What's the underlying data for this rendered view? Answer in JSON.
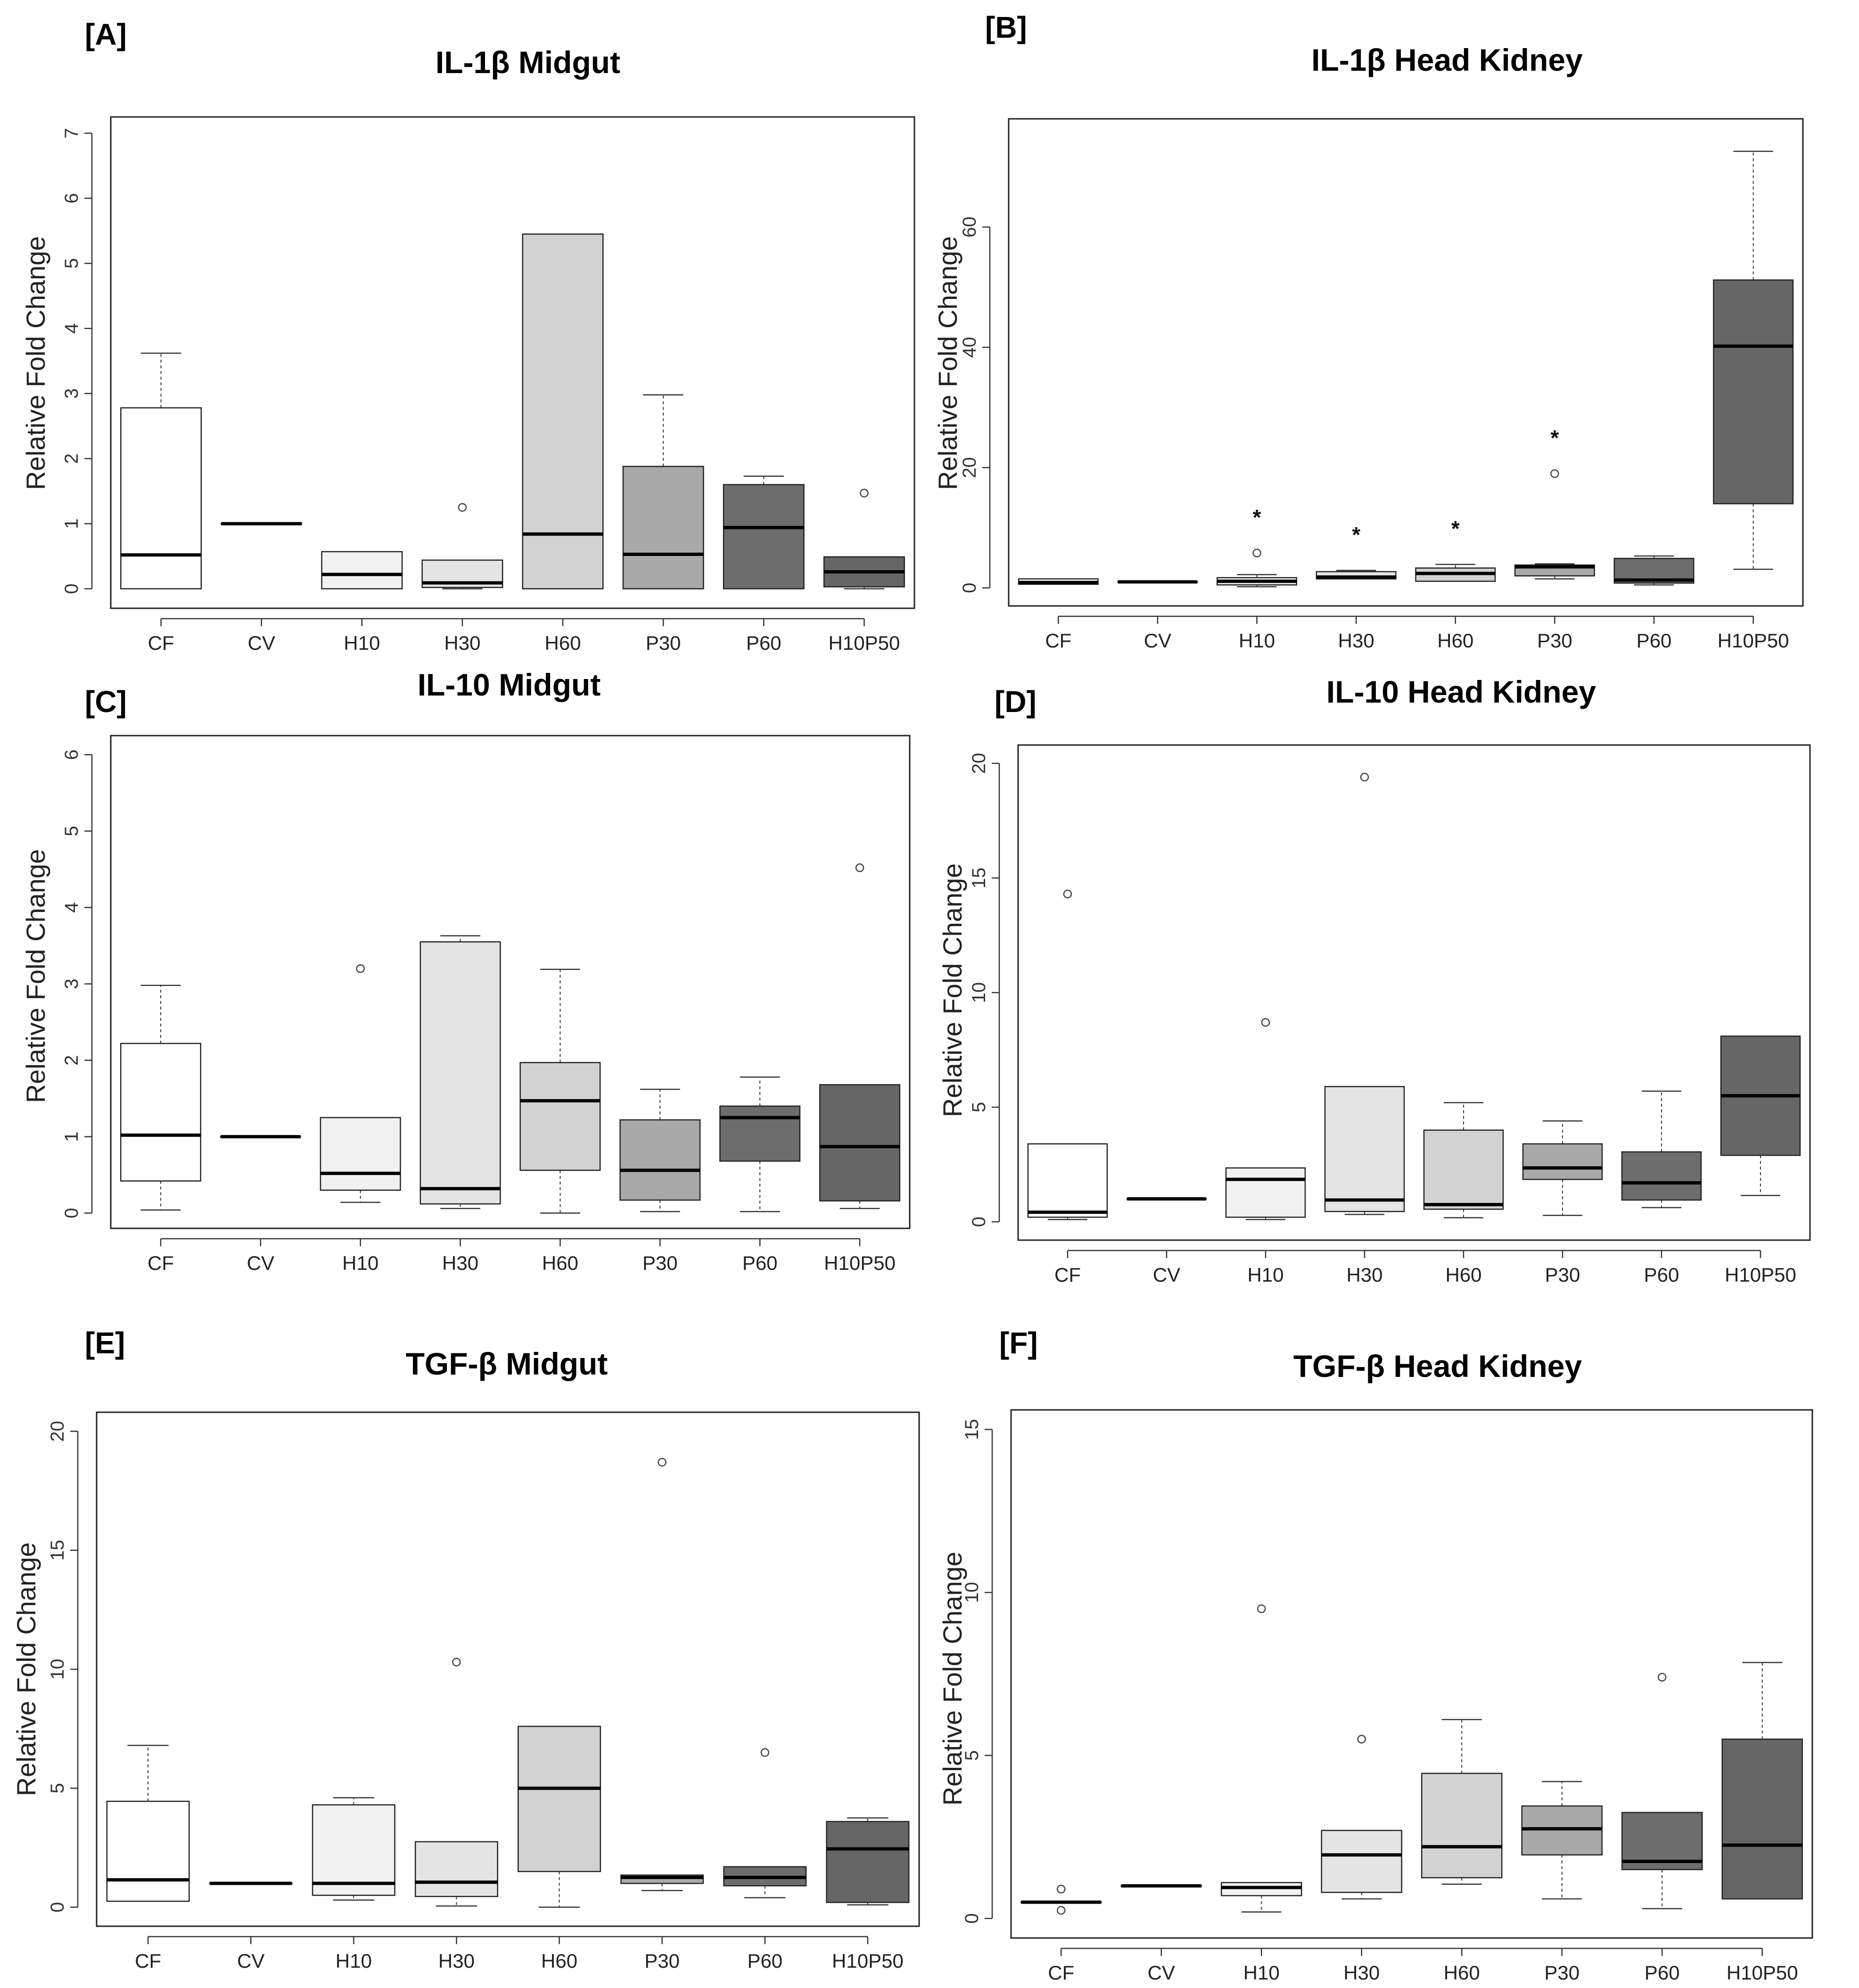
{
  "figure": {
    "boxplot_colors": [
      "#ffffff",
      "#ffffff",
      "#f1f1f1",
      "#e4e4e4",
      "#d2d2d2",
      "#a9a9a9",
      "#6d6d6d",
      "#666666"
    ]
  },
  "chart_data": [
    {
      "panel": "[A]",
      "title": "IL-1β Midgut",
      "type": "boxplot",
      "ylabel": "Relative Fold Change",
      "ylim": [
        -0.3,
        7.25
      ],
      "yticks": [
        0,
        1,
        2,
        3,
        4,
        5,
        6,
        7
      ],
      "categories": [
        "CF",
        "CV",
        "H10",
        "H30",
        "H60",
        "P30",
        "P60",
        "H10P50"
      ],
      "boxes": [
        {
          "min": 0,
          "q1": 0,
          "median": 0.52,
          "q3": 2.78,
          "max": 3.62,
          "outliers": [],
          "sig": ""
        },
        {
          "min": 1,
          "q1": 1,
          "median": 1,
          "q3": 1,
          "max": 1,
          "outliers": [],
          "sig": ""
        },
        {
          "min": 0,
          "q1": 0,
          "median": 0.22,
          "q3": 0.57,
          "max": 0.57,
          "outliers": [],
          "sig": ""
        },
        {
          "min": 0,
          "q1": 0.02,
          "median": 0.09,
          "q3": 0.44,
          "max": 0.44,
          "outliers": [
            1.25
          ],
          "sig": ""
        },
        {
          "min": 0,
          "q1": 0,
          "median": 0.84,
          "q3": 5.45,
          "max": 5.45,
          "outliers": [],
          "sig": ""
        },
        {
          "min": 0,
          "q1": 0,
          "median": 0.53,
          "q3": 1.88,
          "max": 2.98,
          "outliers": [],
          "sig": ""
        },
        {
          "min": 0,
          "q1": 0,
          "median": 0.94,
          "q3": 1.6,
          "max": 1.73,
          "outliers": [],
          "sig": ""
        },
        {
          "min": 0,
          "q1": 0.03,
          "median": 0.26,
          "q3": 0.49,
          "max": 0.49,
          "outliers": [
            1.47
          ],
          "sig": ""
        }
      ]
    },
    {
      "panel": "[B]",
      "title": "IL-1β Head Kidney",
      "type": "boxplot",
      "ylabel": "Relative Fold Change",
      "ylim": [
        -3,
        78
      ],
      "yticks": [
        0,
        20,
        40,
        60
      ],
      "categories": [
        "CF",
        "CV",
        "H10",
        "H30",
        "H60",
        "P30",
        "P60",
        "H10P50"
      ],
      "boxes": [
        {
          "min": 0.6,
          "q1": 0.6,
          "median": 0.9,
          "q3": 1.5,
          "max": 1.5,
          "outliers": [],
          "sig": ""
        },
        {
          "min": 1,
          "q1": 1,
          "median": 1,
          "q3": 1,
          "max": 1,
          "outliers": [],
          "sig": ""
        },
        {
          "min": 0.2,
          "q1": 0.5,
          "median": 1.1,
          "q3": 1.7,
          "max": 2.2,
          "outliers": [
            5.8
          ],
          "sig": "*"
        },
        {
          "min": 1.5,
          "q1": 1.5,
          "median": 1.8,
          "q3": 2.7,
          "max": 2.9,
          "outliers": [],
          "sig": "*"
        },
        {
          "min": 1.1,
          "q1": 1.1,
          "median": 2.4,
          "q3": 3.3,
          "max": 3.9,
          "outliers": [],
          "sig": "*"
        },
        {
          "min": 1.5,
          "q1": 2,
          "median": 3.5,
          "q3": 3.8,
          "max": 4,
          "outliers": [
            19
          ],
          "sig": "*"
        },
        {
          "min": 0.5,
          "q1": 0.8,
          "median": 1.3,
          "q3": 4.9,
          "max": 5.3,
          "outliers": [],
          "sig": ""
        },
        {
          "min": 3.1,
          "q1": 14,
          "median": 40.2,
          "q3": 51.2,
          "max": 72.6,
          "outliers": [],
          "sig": ""
        }
      ]
    },
    {
      "panel": "[C]",
      "title": "IL-10 Midgut",
      "type": "boxplot",
      "ylabel": "Relative Fold Change",
      "ylim": [
        -0.2,
        6.25
      ],
      "yticks": [
        0,
        1,
        2,
        3,
        4,
        5,
        6
      ],
      "categories": [
        "CF",
        "CV",
        "H10",
        "H30",
        "H60",
        "P30",
        "P60",
        "H10P50"
      ],
      "boxes": [
        {
          "min": 0.04,
          "q1": 0.42,
          "median": 1.02,
          "q3": 2.22,
          "max": 2.98,
          "outliers": [],
          "sig": ""
        },
        {
          "min": 1,
          "q1": 1,
          "median": 1,
          "q3": 1,
          "max": 1,
          "outliers": [],
          "sig": ""
        },
        {
          "min": 0.14,
          "q1": 0.3,
          "median": 0.52,
          "q3": 1.25,
          "max": 1.25,
          "outliers": [
            3.2
          ],
          "sig": ""
        },
        {
          "min": 0.06,
          "q1": 0.12,
          "median": 0.32,
          "q3": 3.55,
          "max": 3.63,
          "outliers": [],
          "sig": ""
        },
        {
          "min": 0,
          "q1": 0.56,
          "median": 1.47,
          "q3": 1.97,
          "max": 3.19,
          "outliers": [],
          "sig": ""
        },
        {
          "min": 0.02,
          "q1": 0.17,
          "median": 0.56,
          "q3": 1.22,
          "max": 1.62,
          "outliers": [],
          "sig": ""
        },
        {
          "min": 0.02,
          "q1": 0.68,
          "median": 1.25,
          "q3": 1.4,
          "max": 1.78,
          "outliers": [],
          "sig": ""
        },
        {
          "min": 0.06,
          "q1": 0.16,
          "median": 0.87,
          "q3": 1.68,
          "max": 1.68,
          "outliers": [
            4.52
          ],
          "sig": ""
        }
      ]
    },
    {
      "panel": "[D]",
      "title": "IL-10 Head Kidney",
      "type": "boxplot",
      "ylabel": "Relative Fold Change",
      "ylim": [
        -0.8,
        20.8
      ],
      "yticks": [
        0,
        5,
        10,
        15,
        20
      ],
      "categories": [
        "CF",
        "CV",
        "H10",
        "H30",
        "H60",
        "P30",
        "P60",
        "H10P50"
      ],
      "boxes": [
        {
          "min": 0.1,
          "q1": 0.2,
          "median": 0.42,
          "q3": 3.4,
          "max": 3.4,
          "outliers": [
            14.3
          ],
          "sig": ""
        },
        {
          "min": 1,
          "q1": 1,
          "median": 1,
          "q3": 1,
          "max": 1,
          "outliers": [],
          "sig": ""
        },
        {
          "min": 0.1,
          "q1": 0.2,
          "median": 1.85,
          "q3": 2.35,
          "max": 2.35,
          "outliers": [
            8.7
          ],
          "sig": ""
        },
        {
          "min": 0.32,
          "q1": 0.45,
          "median": 0.95,
          "q3": 5.9,
          "max": 5.9,
          "outliers": [
            19.4
          ],
          "sig": ""
        },
        {
          "min": 0.18,
          "q1": 0.55,
          "median": 0.75,
          "q3": 4,
          "max": 5.2,
          "outliers": [],
          "sig": ""
        },
        {
          "min": 0.28,
          "q1": 1.85,
          "median": 2.35,
          "q3": 3.4,
          "max": 4.4,
          "outliers": [],
          "sig": ""
        },
        {
          "min": 0.62,
          "q1": 0.95,
          "median": 1.7,
          "q3": 3.05,
          "max": 5.7,
          "outliers": [],
          "sig": ""
        },
        {
          "min": 1.15,
          "q1": 2.9,
          "median": 5.5,
          "q3": 8.1,
          "max": 8.1,
          "outliers": [],
          "sig": ""
        }
      ]
    },
    {
      "panel": "[E]",
      "title": "TGF-β Midgut",
      "type": "boxplot",
      "ylabel": "Relative Fold Change",
      "ylim": [
        -0.8,
        20.8
      ],
      "yticks": [
        0,
        5,
        10,
        15,
        20
      ],
      "categories": [
        "CF",
        "CV",
        "H10",
        "H30",
        "H60",
        "P30",
        "P60",
        "H10P50"
      ],
      "boxes": [
        {
          "min": 0.25,
          "q1": 0.25,
          "median": 1.15,
          "q3": 4.45,
          "max": 6.8,
          "outliers": [],
          "sig": ""
        },
        {
          "min": 1,
          "q1": 1,
          "median": 1,
          "q3": 1,
          "max": 1,
          "outliers": [],
          "sig": ""
        },
        {
          "min": 0.3,
          "q1": 0.5,
          "median": 1,
          "q3": 4.3,
          "max": 4.6,
          "outliers": [],
          "sig": ""
        },
        {
          "min": 0.05,
          "q1": 0.45,
          "median": 1.05,
          "q3": 2.75,
          "max": 2.75,
          "outliers": [
            10.3
          ],
          "sig": ""
        },
        {
          "min": 0,
          "q1": 1.5,
          "median": 5,
          "q3": 7.6,
          "max": 7.6,
          "outliers": [],
          "sig": ""
        },
        {
          "min": 0.7,
          "q1": 1,
          "median": 1.25,
          "q3": 1.35,
          "max": 1.35,
          "outliers": [
            18.7
          ],
          "sig": ""
        },
        {
          "min": 0.4,
          "q1": 0.9,
          "median": 1.25,
          "q3": 1.7,
          "max": 1.7,
          "outliers": [
            6.5
          ],
          "sig": ""
        },
        {
          "min": 0.1,
          "q1": 0.2,
          "median": 2.45,
          "q3": 3.6,
          "max": 3.75,
          "outliers": [],
          "sig": ""
        }
      ]
    },
    {
      "panel": "[F]",
      "title": "TGF-β Head Kidney",
      "type": "boxplot",
      "ylabel": "Relative Fold Change",
      "ylim": [
        -0.6,
        15.6
      ],
      "yticks": [
        0,
        5,
        10,
        15
      ],
      "categories": [
        "CF",
        "CV",
        "H10",
        "H30",
        "H60",
        "P30",
        "P60",
        "H10P50"
      ],
      "boxes": [
        {
          "min": 0.5,
          "q1": 0.5,
          "median": 0.5,
          "q3": 0.5,
          "max": 0.5,
          "outliers": [
            0.9,
            0.25
          ],
          "sig": ""
        },
        {
          "min": 1,
          "q1": 1,
          "median": 1,
          "q3": 1,
          "max": 1,
          "outliers": [],
          "sig": ""
        },
        {
          "min": 0.2,
          "q1": 0.7,
          "median": 0.95,
          "q3": 1.1,
          "max": 1.1,
          "outliers": [
            9.5
          ],
          "sig": ""
        },
        {
          "min": 0.6,
          "q1": 0.8,
          "median": 1.95,
          "q3": 2.7,
          "max": 2.7,
          "outliers": [
            5.5
          ],
          "sig": ""
        },
        {
          "min": 1.05,
          "q1": 1.25,
          "median": 2.2,
          "q3": 4.45,
          "max": 6.1,
          "outliers": [],
          "sig": ""
        },
        {
          "min": 0.6,
          "q1": 1.95,
          "median": 2.75,
          "q3": 3.45,
          "max": 4.2,
          "outliers": [],
          "sig": ""
        },
        {
          "min": 0.3,
          "q1": 1.5,
          "median": 1.75,
          "q3": 3.25,
          "max": 3.25,
          "outliers": [
            7.4
          ],
          "sig": ""
        },
        {
          "min": 0.6,
          "q1": 0.6,
          "median": 2.25,
          "q3": 5.5,
          "max": 7.85,
          "outliers": [],
          "sig": ""
        }
      ]
    }
  ]
}
